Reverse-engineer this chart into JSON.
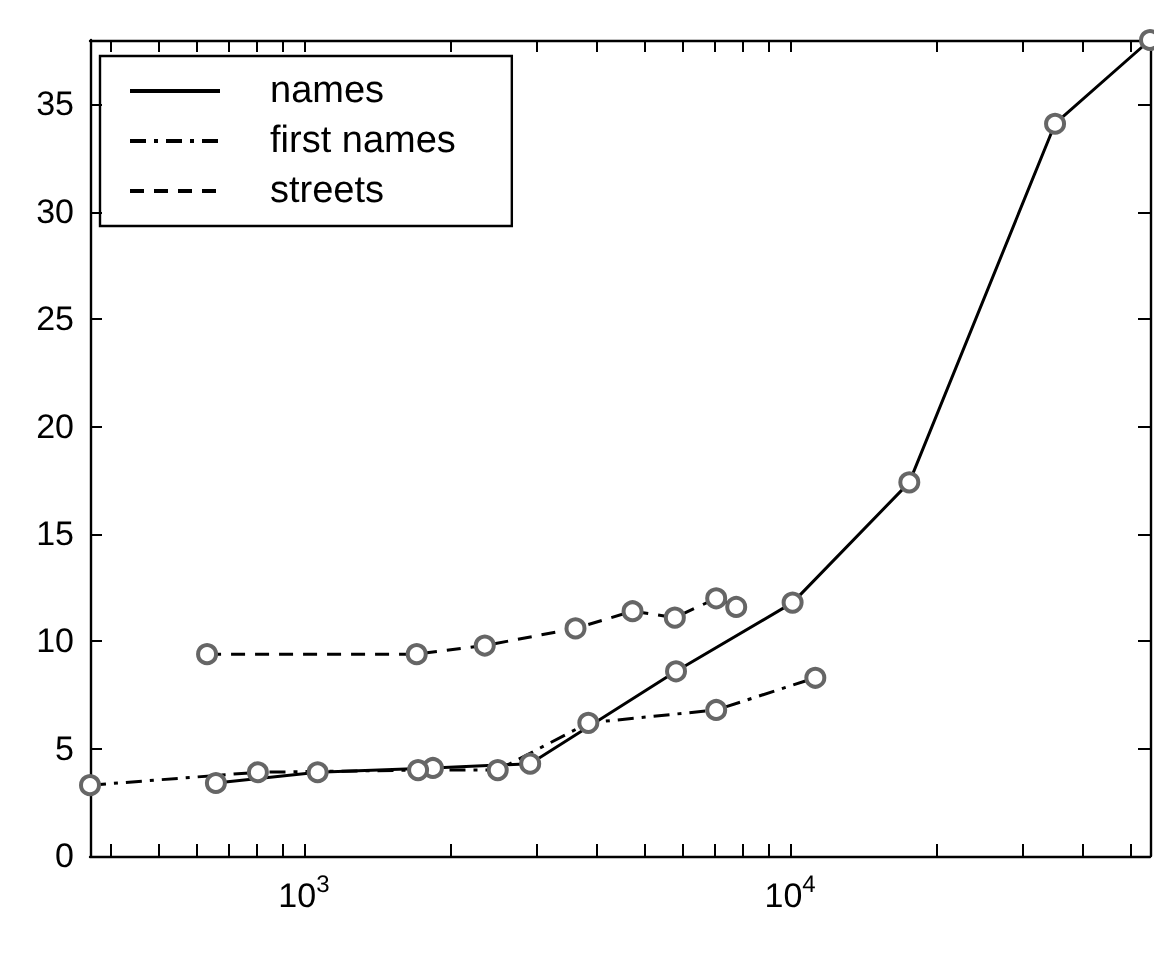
{
  "chart_data": {
    "type": "line",
    "log": "x",
    "xlim": [
      363,
      55000
    ],
    "ylim": [
      0,
      38
    ],
    "xticks": [
      {
        "value": 400,
        "label": null
      },
      {
        "value": 500,
        "label": null
      },
      {
        "value": 600,
        "label": null
      },
      {
        "value": 700,
        "label": null
      },
      {
        "value": 800,
        "label": null
      },
      {
        "value": 900,
        "label": null
      },
      {
        "value": 1000,
        "label": "10$^{3}$"
      },
      {
        "value": 2000,
        "label": null
      },
      {
        "value": 3000,
        "label": null
      },
      {
        "value": 4000,
        "label": null
      },
      {
        "value": 5000,
        "label": null
      },
      {
        "value": 6000,
        "label": null
      },
      {
        "value": 7000,
        "label": null
      },
      {
        "value": 8000,
        "label": null
      },
      {
        "value": 9000,
        "label": null
      },
      {
        "value": 10000,
        "label": "10$^{4}$"
      },
      {
        "value": 20000,
        "label": null
      },
      {
        "value": 30000,
        "label": null
      },
      {
        "value": 40000,
        "label": null
      },
      {
        "value": 50000,
        "label": null
      }
    ],
    "yticks": [
      0,
      5,
      10,
      15,
      20,
      25,
      30,
      35
    ],
    "grid": false,
    "legend": "top left",
    "marker": "circle",
    "series": [
      {
        "name": "names",
        "color": "#000000",
        "line_style": "solid",
        "x": [
          659,
          1067,
          1842,
          2920,
          5826,
          10120,
          17590,
          35080,
          55000
        ],
        "values": [
          3.4,
          3.9,
          4.1,
          4.3,
          8.6,
          11.8,
          17.4,
          34.1,
          38
        ]
      },
      {
        "name": "first names",
        "color": "#000000",
        "line_style": "dashdot",
        "x": [
          363,
          804,
          1717,
          2504,
          3846,
          7047,
          11270
        ],
        "values": [
          3.3,
          3.9,
          4.0,
          4.0,
          6.2,
          6.8,
          8.3
        ]
      },
      {
        "name": "streets",
        "color": "#000000",
        "line_style": "dashed",
        "x": [
          632,
          1706,
          2355,
          3619,
          4742,
          5793,
          7047,
          7748
        ],
        "values": [
          9.4,
          9.4,
          9.8,
          10.6,
          11.4,
          11.1,
          12.0,
          11.6
        ]
      }
    ]
  }
}
